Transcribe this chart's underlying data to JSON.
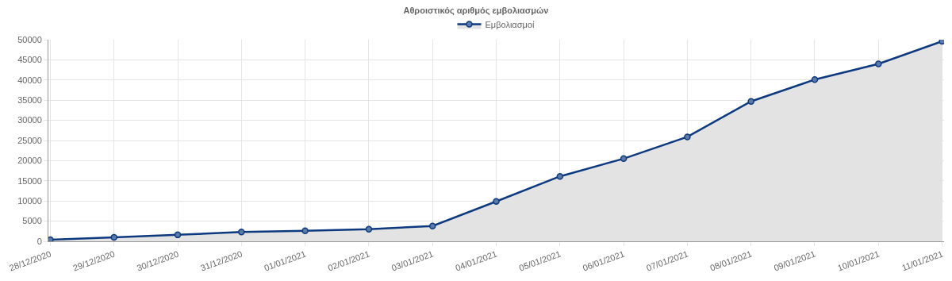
{
  "chart_data": {
    "type": "area",
    "title": "Αθροιστικός αριθμός εμβολιασμών",
    "categories": [
      "28/12/2020",
      "29/12/2020",
      "30/12/2020",
      "31/12/2020",
      "01/01/2021",
      "02/01/2021",
      "03/01/2021",
      "04/01/2021",
      "05/01/2021",
      "06/01/2021",
      "07/01/2021",
      "08/01/2021",
      "09/01/2021",
      "10/01/2021",
      "11/01/2021"
    ],
    "series": [
      {
        "name": "Εμβολιασμοί",
        "color": "#0d3a7e",
        "values": [
          400,
          1000,
          1600,
          2300,
          2600,
          3000,
          3800,
          9900,
          16100,
          20500,
          25900,
          34700,
          40100,
          44000,
          49600
        ]
      }
    ],
    "ylim": [
      0,
      50000
    ],
    "yticks": [
      0,
      5000,
      10000,
      15000,
      20000,
      25000,
      30000,
      35000,
      40000,
      45000,
      50000
    ],
    "grid": true,
    "legend": "top",
    "marker": "circle",
    "line_style": "solid"
  }
}
